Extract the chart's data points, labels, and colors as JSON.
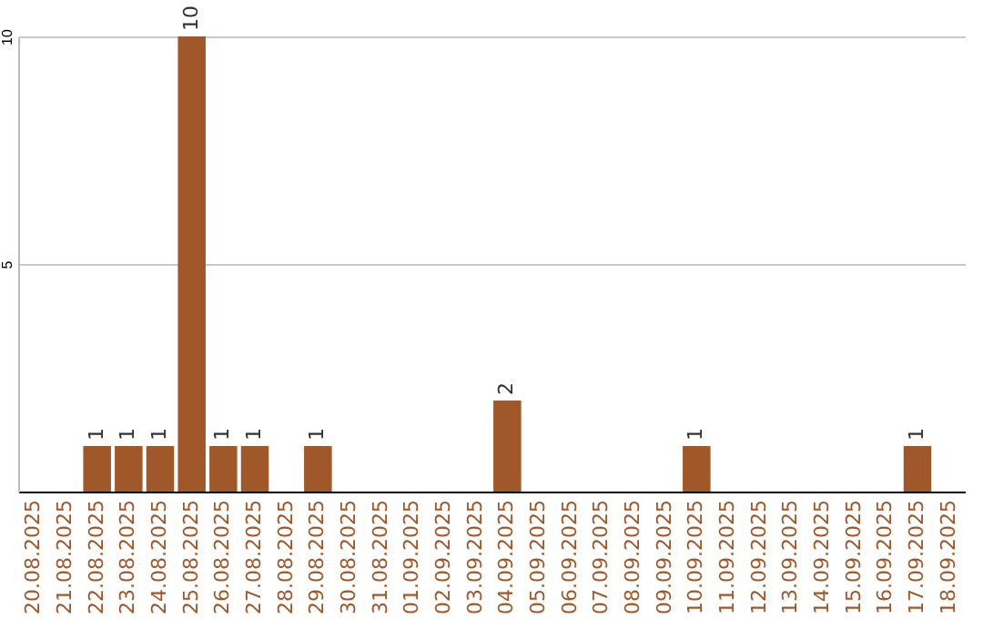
{
  "chart_data": {
    "type": "bar",
    "categories": [
      "20.08.2025",
      "21.08.2025",
      "22.08.2025",
      "23.08.2025",
      "24.08.2025",
      "25.08.2025",
      "26.08.2025",
      "27.08.2025",
      "28.08.2025",
      "29.08.2025",
      "30.08.2025",
      "31.08.2025",
      "01.09.2025",
      "02.09.2025",
      "03.09.2025",
      "04.09.2025",
      "05.09.2025",
      "06.09.2025",
      "07.09.2025",
      "08.09.2025",
      "09.09.2025",
      "10.09.2025",
      "11.09.2025",
      "12.09.2025",
      "13.09.2025",
      "14.09.2025",
      "15.09.2025",
      "16.09.2025",
      "17.09.2025",
      "18.09.2025"
    ],
    "values": [
      0,
      0,
      1,
      1,
      1,
      10,
      1,
      1,
      0,
      1,
      0,
      0,
      0,
      0,
      0,
      2,
      0,
      0,
      0,
      0,
      0,
      1,
      0,
      0,
      0,
      0,
      0,
      0,
      1,
      0
    ],
    "value_labels": [
      null,
      null,
      "1",
      "1",
      "1",
      "10",
      "1",
      "1",
      null,
      "1",
      null,
      null,
      null,
      null,
      null,
      "2",
      null,
      null,
      null,
      null,
      null,
      "1",
      null,
      null,
      null,
      null,
      null,
      null,
      "1",
      null
    ],
    "color": "#a0582a",
    "ylim": [
      0,
      10
    ],
    "yticks": [
      5,
      10
    ],
    "grid": "y"
  }
}
